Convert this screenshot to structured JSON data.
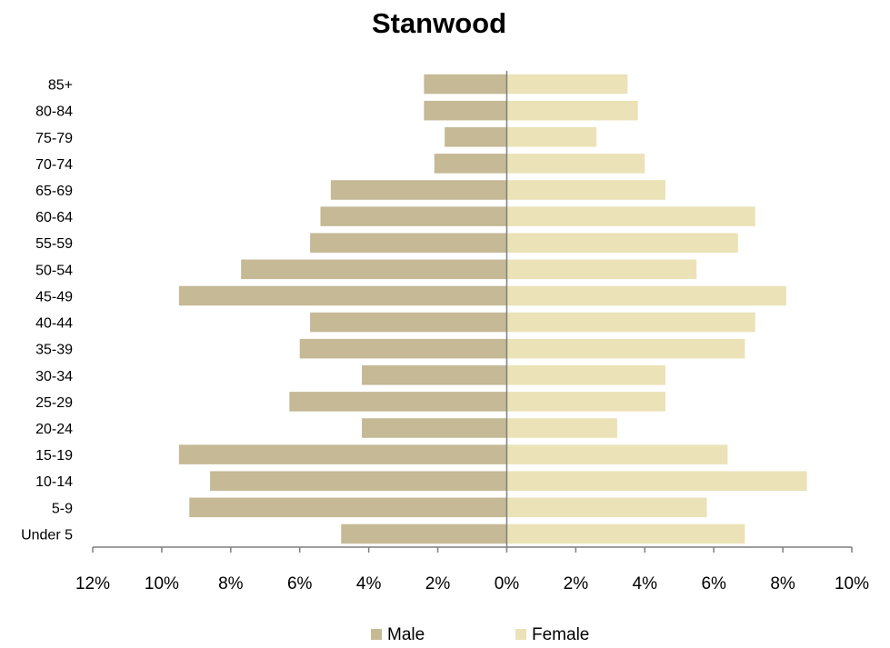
{
  "chart_data": {
    "type": "bar",
    "orientation": "horizontal",
    "title": "Stanwood",
    "categories": [
      "Under 5",
      "5-9",
      "10-14",
      "15-19",
      "20-24",
      "25-29",
      "30-34",
      "35-39",
      "40-44",
      "45-49",
      "50-54",
      "55-59",
      "60-64",
      "65-69",
      "70-74",
      "75-79",
      "80-84",
      "85+"
    ],
    "series": [
      {
        "name": "Male",
        "color": "#c5b996",
        "values": [
          -4.8,
          -9.2,
          -8.6,
          -9.5,
          -4.2,
          -6.3,
          -4.2,
          -6.0,
          -5.7,
          -9.5,
          -7.7,
          -5.7,
          -5.4,
          -5.1,
          -2.1,
          -1.8,
          -2.4,
          -2.4
        ]
      },
      {
        "name": "Female",
        "color": "#ebe2b7",
        "values": [
          6.9,
          5.8,
          8.7,
          6.4,
          3.2,
          4.6,
          4.6,
          6.9,
          7.2,
          8.1,
          5.5,
          6.7,
          7.2,
          4.6,
          4.0,
          2.6,
          3.8,
          3.5
        ]
      }
    ],
    "xlim": [
      -12,
      10
    ],
    "xticks": [
      -12,
      -10,
      -8,
      -6,
      -4,
      -2,
      0,
      2,
      4,
      6,
      8,
      10
    ],
    "xtick_labels": [
      "12%",
      "10%",
      "8%",
      "6%",
      "4%",
      "2%",
      "0%",
      "2%",
      "4%",
      "6%",
      "8%",
      "10%"
    ],
    "xlabel": "",
    "ylabel": "",
    "grid": false,
    "legend_position": "bottom"
  }
}
